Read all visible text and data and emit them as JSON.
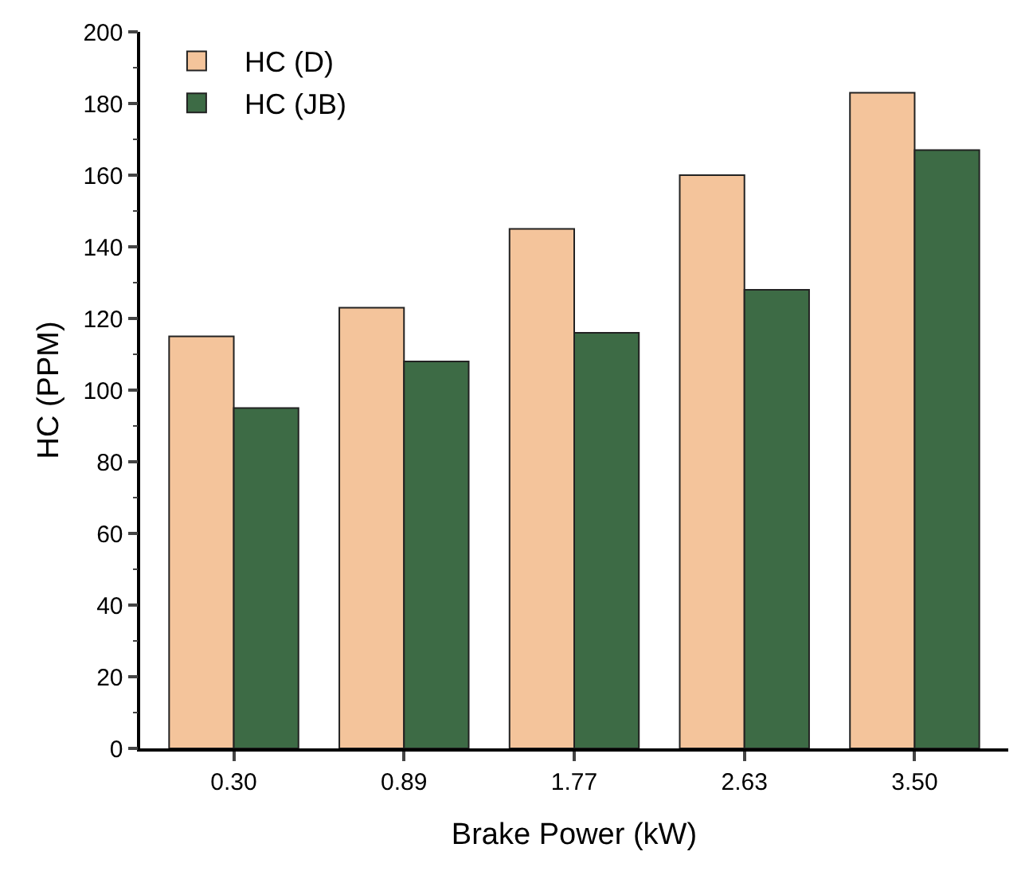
{
  "chart_data": {
    "type": "bar",
    "xlabel": "Brake Power (kW)",
    "ylabel": "HC (PPM)",
    "categories": [
      "0.30",
      "0.89",
      "1.77",
      "2.63",
      "3.50"
    ],
    "series": [
      {
        "name": "HC (D)",
        "color": "#f4c49b",
        "values": [
          115,
          123,
          145,
          160,
          183
        ]
      },
      {
        "name": "HC (JB)",
        "color": "#3d6b45",
        "values": [
          95,
          108,
          116,
          128,
          167
        ]
      }
    ],
    "ylim": [
      0,
      200
    ],
    "yticks": [
      0,
      20,
      40,
      60,
      80,
      100,
      120,
      140,
      160,
      180,
      200
    ],
    "grid": false,
    "legend": "top left"
  }
}
